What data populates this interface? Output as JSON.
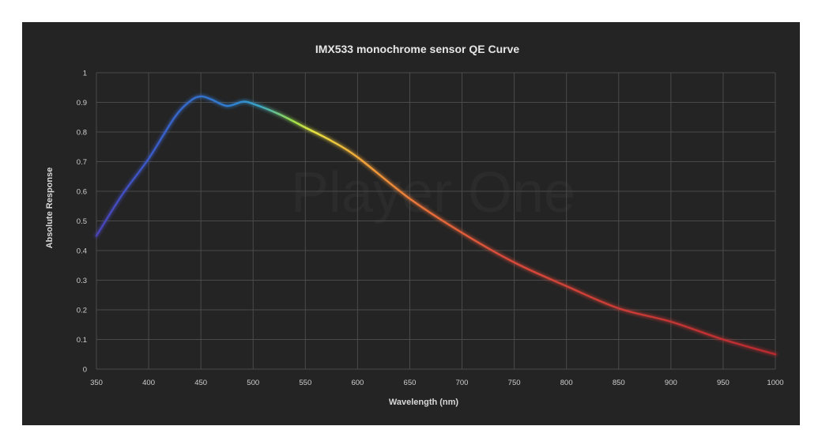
{
  "chart_data": {
    "type": "line",
    "title": "IMX533 monochrome sensor QE Curve",
    "xlabel": "Wavelength (nm)",
    "ylabel": "Absolute Response",
    "xlim": [
      350,
      1000
    ],
    "ylim": [
      0,
      1
    ],
    "grid": true,
    "xticks": [
      350,
      400,
      450,
      500,
      550,
      600,
      650,
      700,
      750,
      800,
      850,
      900,
      950,
      1000
    ],
    "yticks": [
      0,
      0.1,
      0.2,
      0.3,
      0.4,
      0.5,
      0.6,
      0.7,
      0.8,
      0.9,
      1
    ],
    "watermark": "Player One",
    "series": [
      {
        "name": "QE",
        "x": [
          350,
          375,
          400,
          425,
          440,
          450,
          460,
          475,
          490,
          500,
          525,
          550,
          575,
          600,
          650,
          700,
          750,
          800,
          850,
          900,
          950,
          1000
        ],
        "y": [
          0.45,
          0.59,
          0.71,
          0.85,
          0.905,
          0.92,
          0.91,
          0.888,
          0.902,
          0.895,
          0.86,
          0.815,
          0.77,
          0.715,
          0.575,
          0.46,
          0.36,
          0.28,
          0.205,
          0.16,
          0.1,
          0.05
        ]
      }
    ]
  }
}
